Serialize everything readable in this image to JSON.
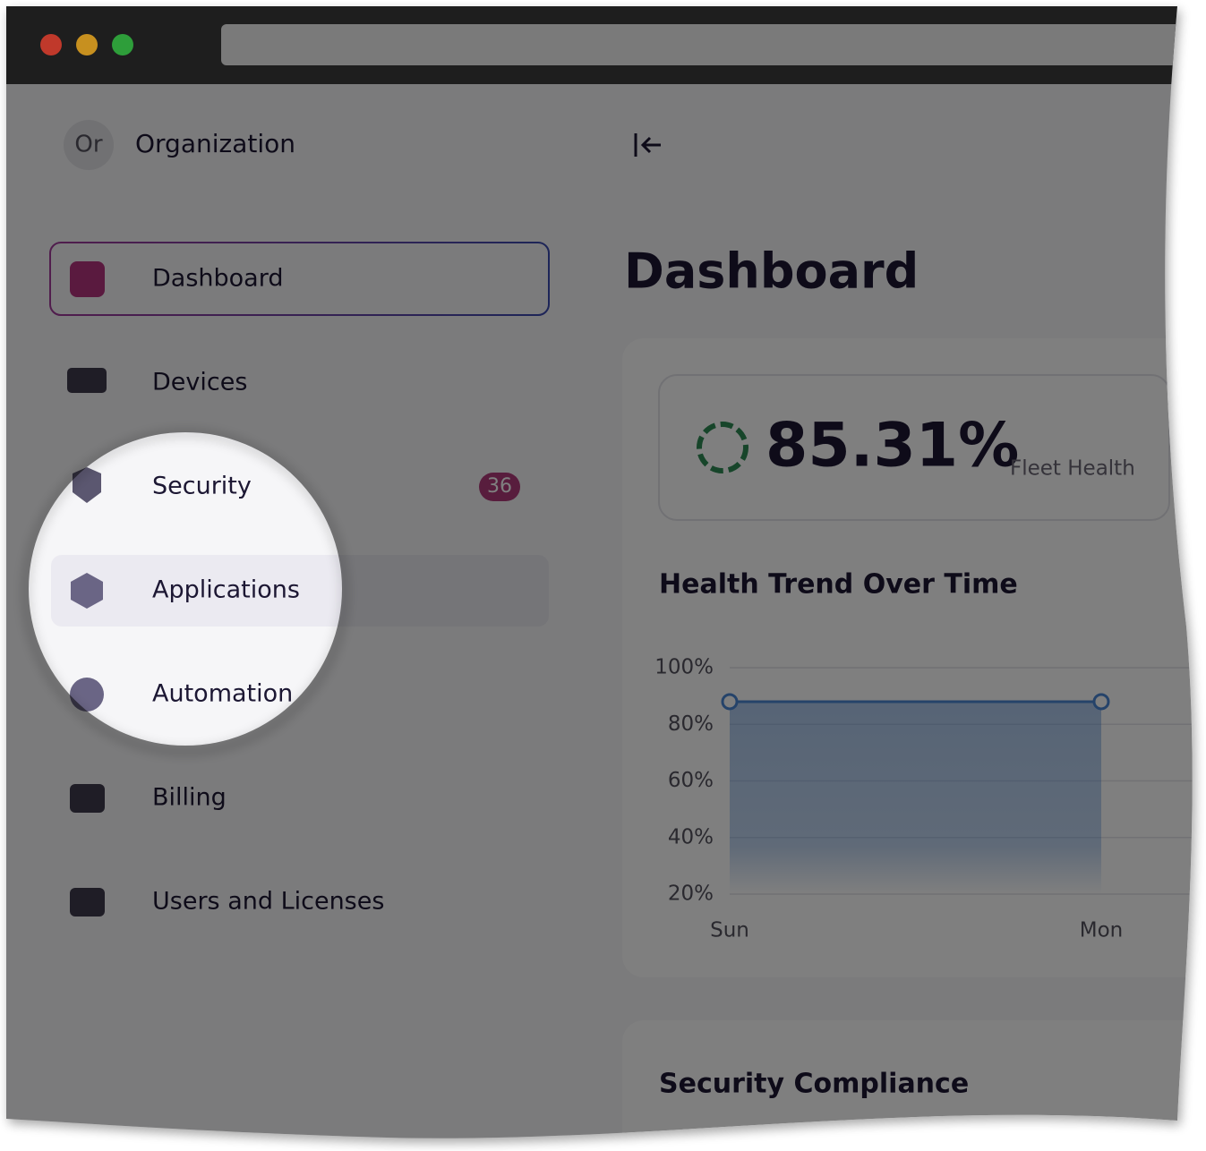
{
  "sidebar": {
    "org_initials": "Or",
    "org_name": "Organization",
    "nav": [
      {
        "label": "Dashboard"
      },
      {
        "label": "Devices"
      },
      {
        "label": "Security",
        "badge": 36
      },
      {
        "label": "Applications"
      },
      {
        "label": "Automation"
      },
      {
        "label": "Billing"
      },
      {
        "label": "Users and Licenses"
      }
    ]
  },
  "main": {
    "title": "Dashboard",
    "fleet_health": {
      "value": "85.31%",
      "label": "Fleet Health"
    },
    "security_compliance": {
      "title": "Security Compliance"
    }
  },
  "chart_data": {
    "type": "line",
    "title": "Health Trend Over Time",
    "categories": [
      "Sun",
      "Mon"
    ],
    "values": [
      88,
      88
    ],
    "color": "#4a86d4",
    "ylim": [
      20,
      100
    ],
    "yticks": [
      {
        "value": 100,
        "label": "100%"
      },
      {
        "value": 80,
        "label": "80%"
      },
      {
        "value": 60,
        "label": "60%"
      },
      {
        "value": 40,
        "label": "40%"
      },
      {
        "value": 20,
        "label": "20%"
      }
    ],
    "grid": true
  }
}
